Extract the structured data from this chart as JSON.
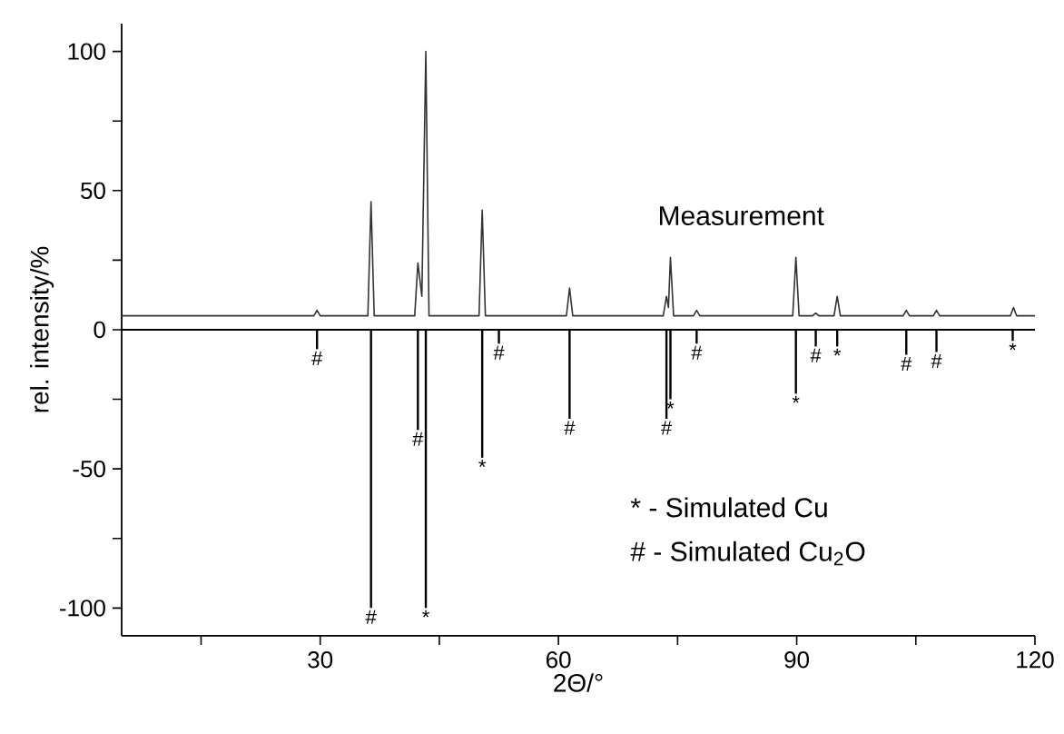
{
  "chart_data": {
    "type": "line",
    "xlabel": "2Θ/°",
    "ylabel": "rel. intensity/%",
    "xlim": [
      5,
      120
    ],
    "xticks": [
      {
        "value": 15,
        "label": null
      },
      30,
      {
        "value": 45,
        "label": null
      },
      60,
      {
        "value": 75,
        "label": null
      },
      90,
      {
        "value": 105,
        "label": null
      },
      120
    ],
    "ylim": [
      -110,
      110
    ],
    "yticks": [
      -100,
      {
        "value": -75,
        "label": null
      },
      -50,
      {
        "value": -25,
        "label": null
      },
      0,
      {
        "value": 25,
        "label": null
      },
      50,
      {
        "value": 75,
        "label": null
      },
      100
    ],
    "grid": false,
    "marker": "none",
    "line_style": "solid",
    "ref_lines": [
      {
        "axis": "y",
        "value": 0,
        "color": "#000000"
      }
    ],
    "series": [
      {
        "name": "Measurement",
        "color": "#333333",
        "x": [
          5,
          29.2,
          29.6,
          30.0,
          36.0,
          36.4,
          36.8,
          41.9,
          42.3,
          42.8,
          43.3,
          43.7,
          50.0,
          50.4,
          50.8,
          61.0,
          61.4,
          61.8,
          73.2,
          73.6,
          73.85,
          74.1,
          74.5,
          77.0,
          77.4,
          77.8,
          89.5,
          89.9,
          90.3,
          92.0,
          92.4,
          92.8,
          94.7,
          95.1,
          95.5,
          103.4,
          103.8,
          104.2,
          107.2,
          107.6,
          108.0,
          116.9,
          117.3,
          117.7,
          120
        ],
        "values": [
          5,
          5,
          7,
          5,
          5,
          46,
          5,
          5,
          24,
          12,
          100,
          5,
          5,
          43,
          5,
          5,
          15,
          5,
          5,
          12,
          8,
          26,
          5,
          5,
          7,
          5,
          5,
          26,
          5,
          5,
          6,
          5,
          5,
          12,
          5,
          5,
          7,
          5,
          5,
          7,
          5,
          5,
          8,
          5,
          5
        ]
      },
      {
        "type": "bar",
        "color": "#000000",
        "x": [
          29.6,
          36.4,
          42.3,
          43.3,
          50.4,
          52.5,
          61.4,
          73.6,
          74.1,
          77.4,
          89.9,
          92.4,
          95.1,
          103.8,
          107.6,
          117.2
        ],
        "values": [
          -7,
          -100,
          -36,
          -100,
          -46,
          -5,
          -32,
          -32,
          -25,
          -5,
          -23,
          -6,
          -6,
          -9,
          -8,
          -4
        ]
      }
    ],
    "annotations": [
      {
        "text": "*",
        "x": 43.3,
        "y": -100
      },
      {
        "text": "*",
        "x": 50.4,
        "y": -46
      },
      {
        "text": "*",
        "x": 74.1,
        "y": -25
      },
      {
        "text": "*",
        "x": 89.9,
        "y": -23
      },
      {
        "text": "*",
        "x": 95.1,
        "y": -6
      },
      {
        "text": "*",
        "x": 117.2,
        "y": -4
      },
      {
        "text": "#",
        "x": 29.6,
        "y": -7
      },
      {
        "text": "#",
        "x": 36.4,
        "y": -100
      },
      {
        "text": "#",
        "x": 42.3,
        "y": -36
      },
      {
        "text": "#",
        "x": 52.5,
        "y": -5
      },
      {
        "text": "#",
        "x": 61.4,
        "y": -32
      },
      {
        "text": "#",
        "x": 73.6,
        "y": -32
      },
      {
        "text": "#",
        "x": 77.4,
        "y": -5
      },
      {
        "text": "#",
        "x": 92.4,
        "y": -6
      },
      {
        "text": "#",
        "x": 103.8,
        "y": -9
      },
      {
        "text": "#",
        "x": 107.6,
        "y": -8
      },
      "* - Simulated Cu",
      "# - Simulated Cu$_{2}$O"
    ]
  }
}
